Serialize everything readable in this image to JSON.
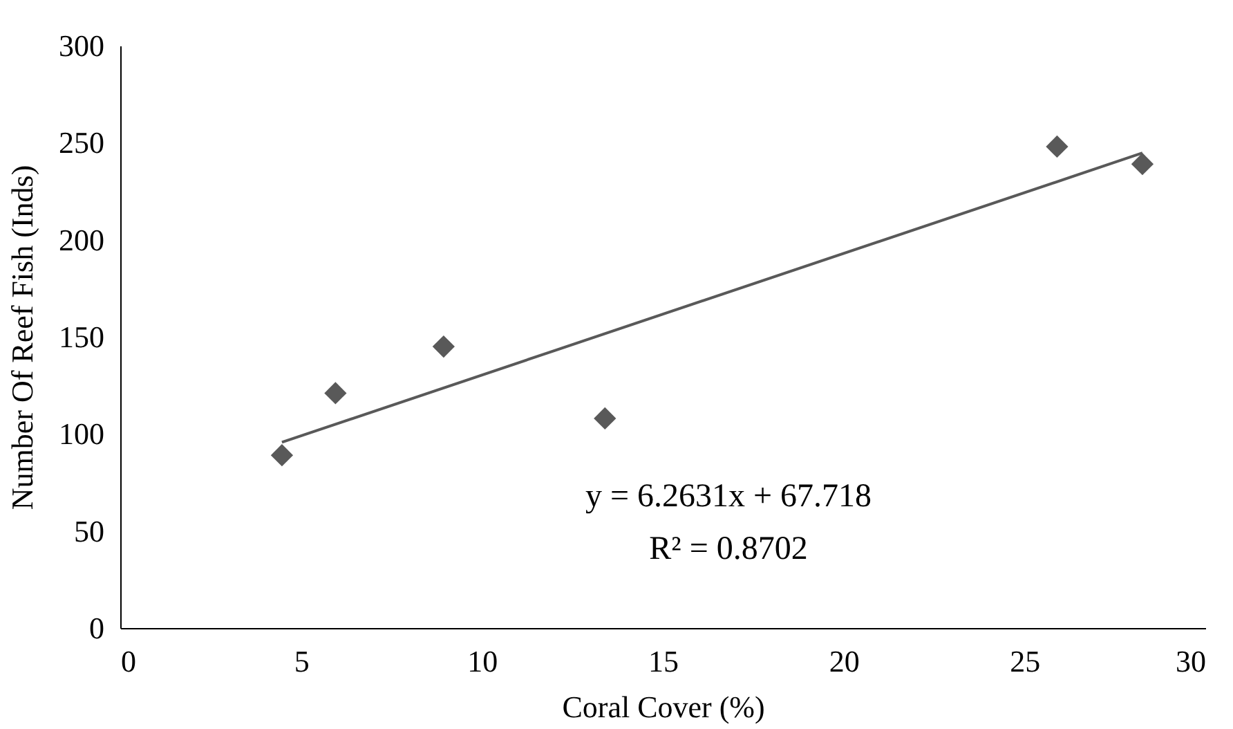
{
  "chart_data": {
    "type": "scatter",
    "xlabel": "Coral Cover (%)",
    "ylabel": "Number Of Reef Fish (Inds)",
    "series": [
      {
        "type": "scatter",
        "color": "#595959",
        "marker": "diamond",
        "x": [
          4.47,
          5.95,
          8.94,
          13.4,
          25.9,
          28.26
        ],
        "values": [
          89,
          121,
          145,
          108,
          248,
          239
        ]
      },
      {
        "type": "line",
        "color": "#595959",
        "marker": "none",
        "x": [
          4.47,
          28.26
        ],
        "values": [
          95.7,
          244.7
        ]
      }
    ],
    "xlim": [
      0,
      30
    ],
    "xticks": [
      0,
      5,
      10,
      15,
      20,
      25,
      30
    ],
    "ylim": [
      0,
      300
    ],
    "yticks": [
      0,
      50,
      100,
      150,
      200,
      250,
      300
    ],
    "grid": false,
    "annotations": [
      "y = 6.2631x + 67.718",
      "R² = 0.8702"
    ]
  }
}
